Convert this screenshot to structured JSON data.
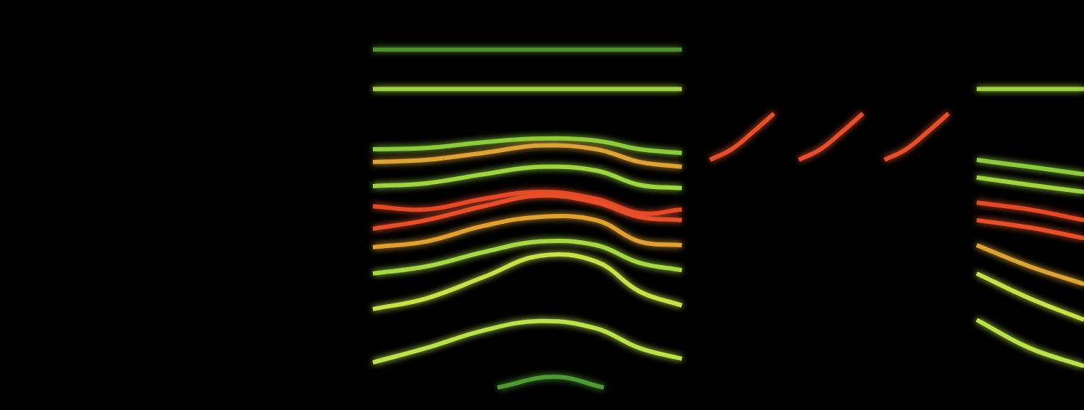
{
  "chart_data": {
    "type": "line",
    "grid": false,
    "tick_labels": false,
    "xlim": [
      0,
      100
    ],
    "ylim": [
      0,
      100
    ],
    "series": [
      {
        "color": "#b9e24c",
        "x": [
          34.4,
          39.3,
          44.6,
          49.8,
          55.0,
          59.0,
          62.9
        ],
        "values": [
          11.6,
          15.1,
          19.4,
          21.7,
          19.9,
          15.1,
          12.5
        ]
      },
      {
        "color": "#c8e04a",
        "x": [
          34.4,
          39.3,
          44.6,
          49.8,
          55.0,
          59.0,
          62.9
        ],
        "values": [
          24.6,
          27.2,
          32.4,
          37.6,
          36.2,
          28.9,
          25.5
        ]
      },
      {
        "color": "#a6d845",
        "x": [
          34.4,
          39.3,
          44.6,
          49.8,
          55.0,
          59.0,
          62.9
        ],
        "values": [
          33.3,
          35.0,
          38.5,
          41.1,
          40.2,
          35.9,
          34.1
        ]
      },
      {
        "color": "#e0a032",
        "x": [
          34.4,
          39.3,
          44.6,
          49.8,
          55.0,
          59.0,
          62.9
        ],
        "values": [
          39.7,
          41.1,
          44.9,
          47.1,
          46.3,
          41.1,
          40.2
        ]
      },
      {
        "color": "#e5502a",
        "x": [
          34.4,
          39.3,
          44.6,
          49.8,
          55.0,
          59.0,
          62.9
        ],
        "values": [
          44.2,
          46.3,
          49.7,
          52.3,
          50.6,
          47.1,
          46.3
        ]
      },
      {
        "color": "#e34a28",
        "x": [
          34.4,
          39.3,
          44.6,
          49.8,
          55.0,
          59.0,
          62.9
        ],
        "values": [
          49.7,
          48.9,
          51.5,
          53.2,
          51.5,
          48.0,
          48.9
        ]
      },
      {
        "color": "#9fd443",
        "x": [
          34.4,
          39.3,
          44.6,
          49.8,
          55.0,
          59.0,
          62.9
        ],
        "values": [
          54.6,
          55.3,
          57.5,
          59.3,
          58.4,
          54.9,
          54.1
        ]
      },
      {
        "color": "#dca436",
        "x": [
          34.4,
          39.3,
          44.6,
          49.8,
          55.0,
          59.0,
          62.9
        ],
        "values": [
          60.5,
          61.0,
          62.7,
          64.5,
          63.6,
          60.5,
          59.3
        ]
      },
      {
        "color": "#8ccb3e",
        "x": [
          34.4,
          39.3,
          44.6,
          49.8,
          55.0,
          59.0,
          62.9
        ],
        "values": [
          63.6,
          63.9,
          65.3,
          66.2,
          65.7,
          63.6,
          62.7
        ]
      },
      {
        "color": "#9cd040",
        "x": [
          34.4,
          39.3,
          44.6,
          49.8,
          55.0,
          59.0,
          62.9
        ],
        "values": [
          78.3,
          78.3,
          78.3,
          78.3,
          78.3,
          78.3,
          78.3
        ]
      },
      {
        "color": "#4f8f2e",
        "x": [
          34.4,
          39.3,
          44.6,
          49.8,
          55.0,
          59.0,
          62.9
        ],
        "values": [
          87.9,
          87.9,
          87.9,
          87.9,
          87.9,
          87.9,
          87.9
        ]
      },
      {
        "color": "#4f9a34",
        "x": [
          45.9,
          51.1,
          55.7
        ],
        "values": [
          5.5,
          8.1,
          5.5
        ]
      },
      {
        "color": "#e5502a",
        "x": [
          65.5,
          67.5,
          69.5,
          71.4
        ],
        "values": [
          61.0,
          63.6,
          67.9,
          72.3
        ]
      },
      {
        "color": "#e5502a",
        "x": [
          73.7,
          75.7,
          77.7,
          79.6
        ],
        "values": [
          61.0,
          63.6,
          67.9,
          72.3
        ]
      },
      {
        "color": "#e5502a",
        "x": [
          81.6,
          83.6,
          85.6,
          87.5
        ],
        "values": [
          61.0,
          63.6,
          67.9,
          72.3
        ]
      },
      {
        "color": "#b9e24c",
        "x": [
          90.1,
          95.0,
          100
        ],
        "values": [
          22.0,
          15.1,
          10.7
        ]
      },
      {
        "color": "#c8e04a",
        "x": [
          90.1,
          95.0,
          100
        ],
        "values": [
          33.3,
          27.2,
          22.0
        ]
      },
      {
        "color": "#dca436",
        "x": [
          90.1,
          95.0,
          100
        ],
        "values": [
          40.2,
          35.0,
          30.7
        ]
      },
      {
        "color": "#e5502a",
        "x": [
          90.1,
          95.0,
          100
        ],
        "values": [
          46.3,
          44.5,
          41.9
        ]
      },
      {
        "color": "#e34a28",
        "x": [
          90.1,
          95.0,
          100
        ],
        "values": [
          50.6,
          48.9,
          46.3
        ]
      },
      {
        "color": "#9fd443",
        "x": [
          90.1,
          95.0,
          100
        ],
        "values": [
          56.7,
          54.9,
          53.2
        ]
      },
      {
        "color": "#8ccb3e",
        "x": [
          90.1,
          95.0,
          100
        ],
        "values": [
          61.0,
          59.3,
          57.5
        ]
      },
      {
        "color": "#9cd040",
        "x": [
          90.1,
          95.0,
          100
        ],
        "values": [
          78.3,
          78.3,
          78.3
        ]
      }
    ]
  }
}
